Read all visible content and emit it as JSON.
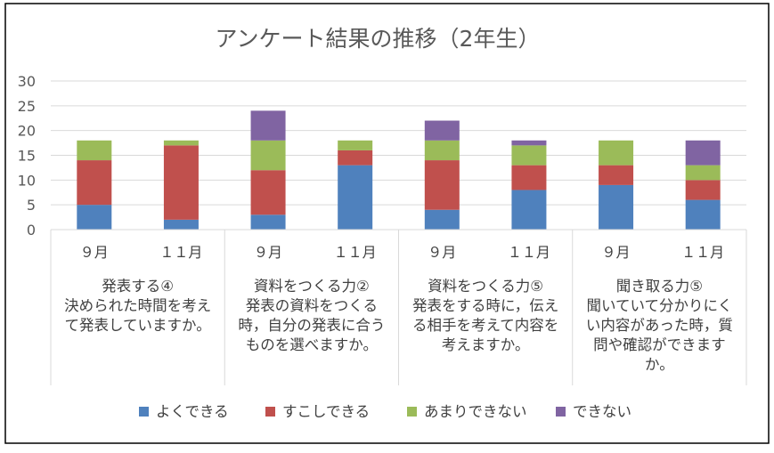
{
  "chart_data": {
    "type": "bar",
    "stacked": true,
    "title": "アンケート結果の推移（2年生）",
    "ylim": [
      0,
      30
    ],
    "yticks": [
      0,
      5,
      10,
      15,
      20,
      25,
      30
    ],
    "grid": true,
    "legend_position": "bottom",
    "categories": [
      "９月",
      "１１月",
      "９月",
      "１１月",
      "９月",
      "１１月",
      "９月",
      "１１月"
    ],
    "groups": [
      {
        "lines": [
          "発表する④",
          "決められた時間を考え",
          "て発表していますか。"
        ]
      },
      {
        "lines": [
          "資料をつくる力②",
          "発表の資料をつくる",
          "時，自分の発表に合う",
          "ものを選べますか。"
        ]
      },
      {
        "lines": [
          "資料をつくる力⑤",
          "発表をする時に，伝え",
          "る相手を考えて内容を",
          "考えますか。"
        ]
      },
      {
        "lines": [
          "聞き取る力⑤",
          "聞いていて分かりにく",
          "い内容があった時，質",
          "問や確認ができます",
          "か。"
        ]
      }
    ],
    "series": [
      {
        "name": "よくできる",
        "color": "#4F81BD",
        "values": [
          5,
          2,
          3,
          13,
          4,
          8,
          9,
          6
        ]
      },
      {
        "name": "すこしできる",
        "color": "#C0504D",
        "values": [
          9,
          15,
          9,
          3,
          10,
          5,
          4,
          4
        ]
      },
      {
        "name": "あまりできない",
        "color": "#9BBB59",
        "values": [
          4,
          1,
          6,
          2,
          4,
          4,
          5,
          3
        ]
      },
      {
        "name": "できない",
        "color": "#8064A2",
        "values": [
          0,
          0,
          6,
          0,
          4,
          1,
          0,
          5
        ]
      }
    ]
  }
}
